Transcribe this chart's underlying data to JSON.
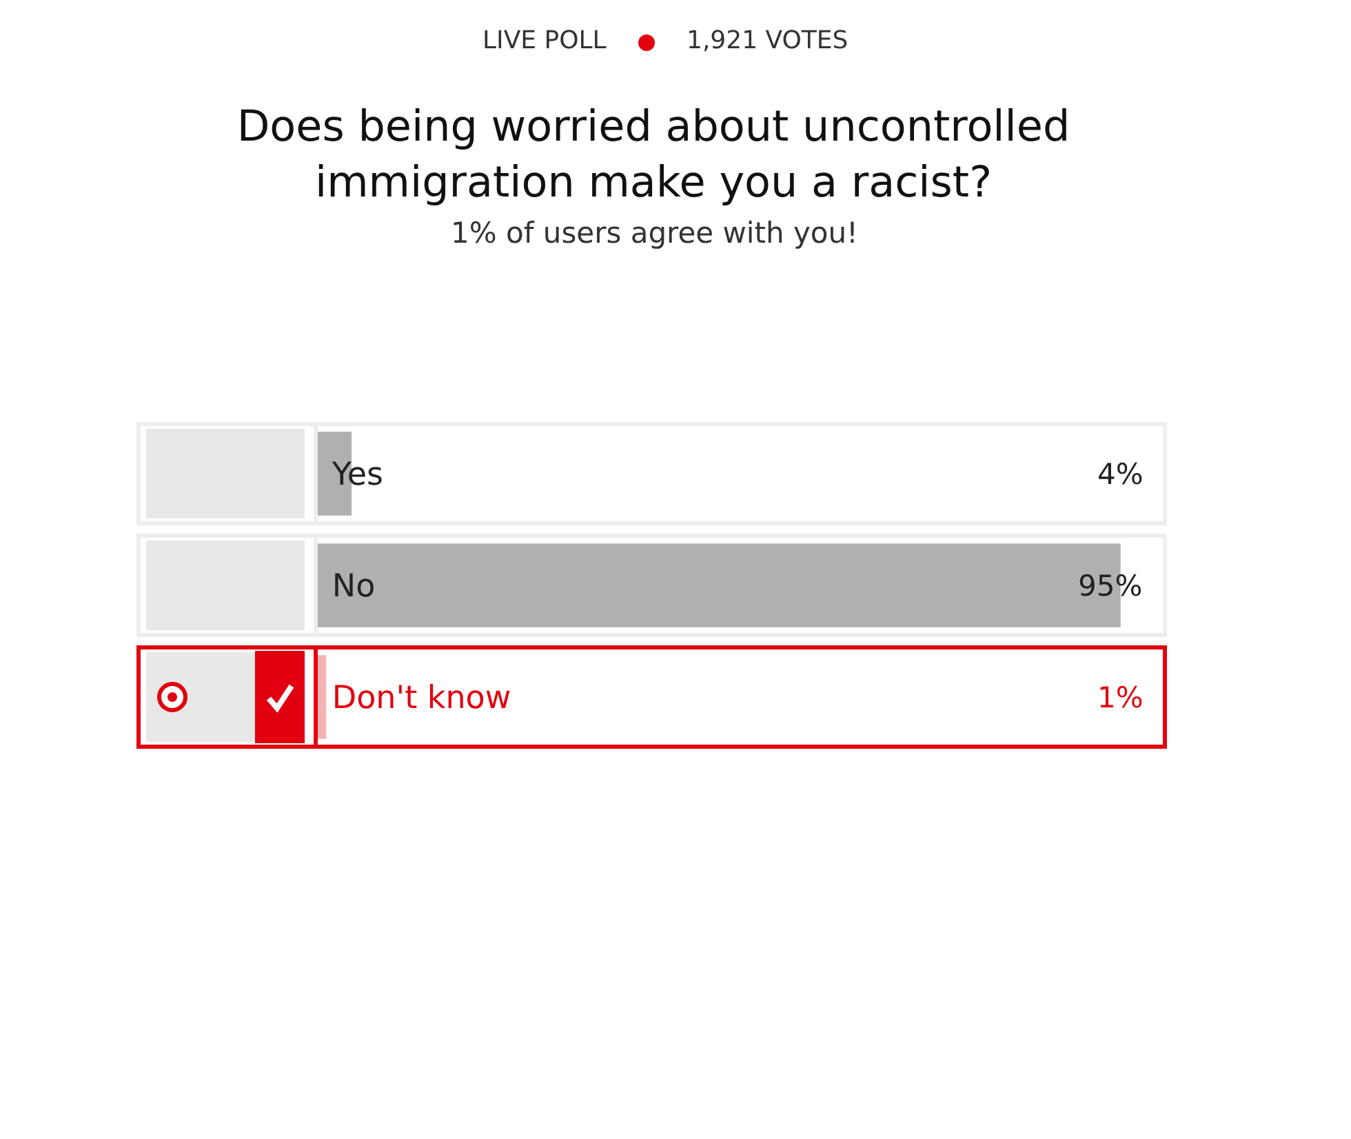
{
  "chart_data": {
    "type": "bar",
    "orientation": "horizontal",
    "title": "Does being worried about uncontrolled immigration make you a racist?",
    "subtitle": "1% of users agree with you!",
    "annotations": [
      "LIVE POLL",
      "1,921 VOTES"
    ],
    "categories": [
      "Yes",
      "No",
      "Don't know"
    ],
    "values": [
      4,
      95,
      1
    ],
    "colors": [
      "#b0b0b0",
      "#b0b0b0",
      "#f4b4b4"
    ],
    "value_labels": [
      "4%",
      "95%",
      "1%"
    ],
    "xlim": [
      0,
      100
    ],
    "tick_labels": "y"
  }
}
